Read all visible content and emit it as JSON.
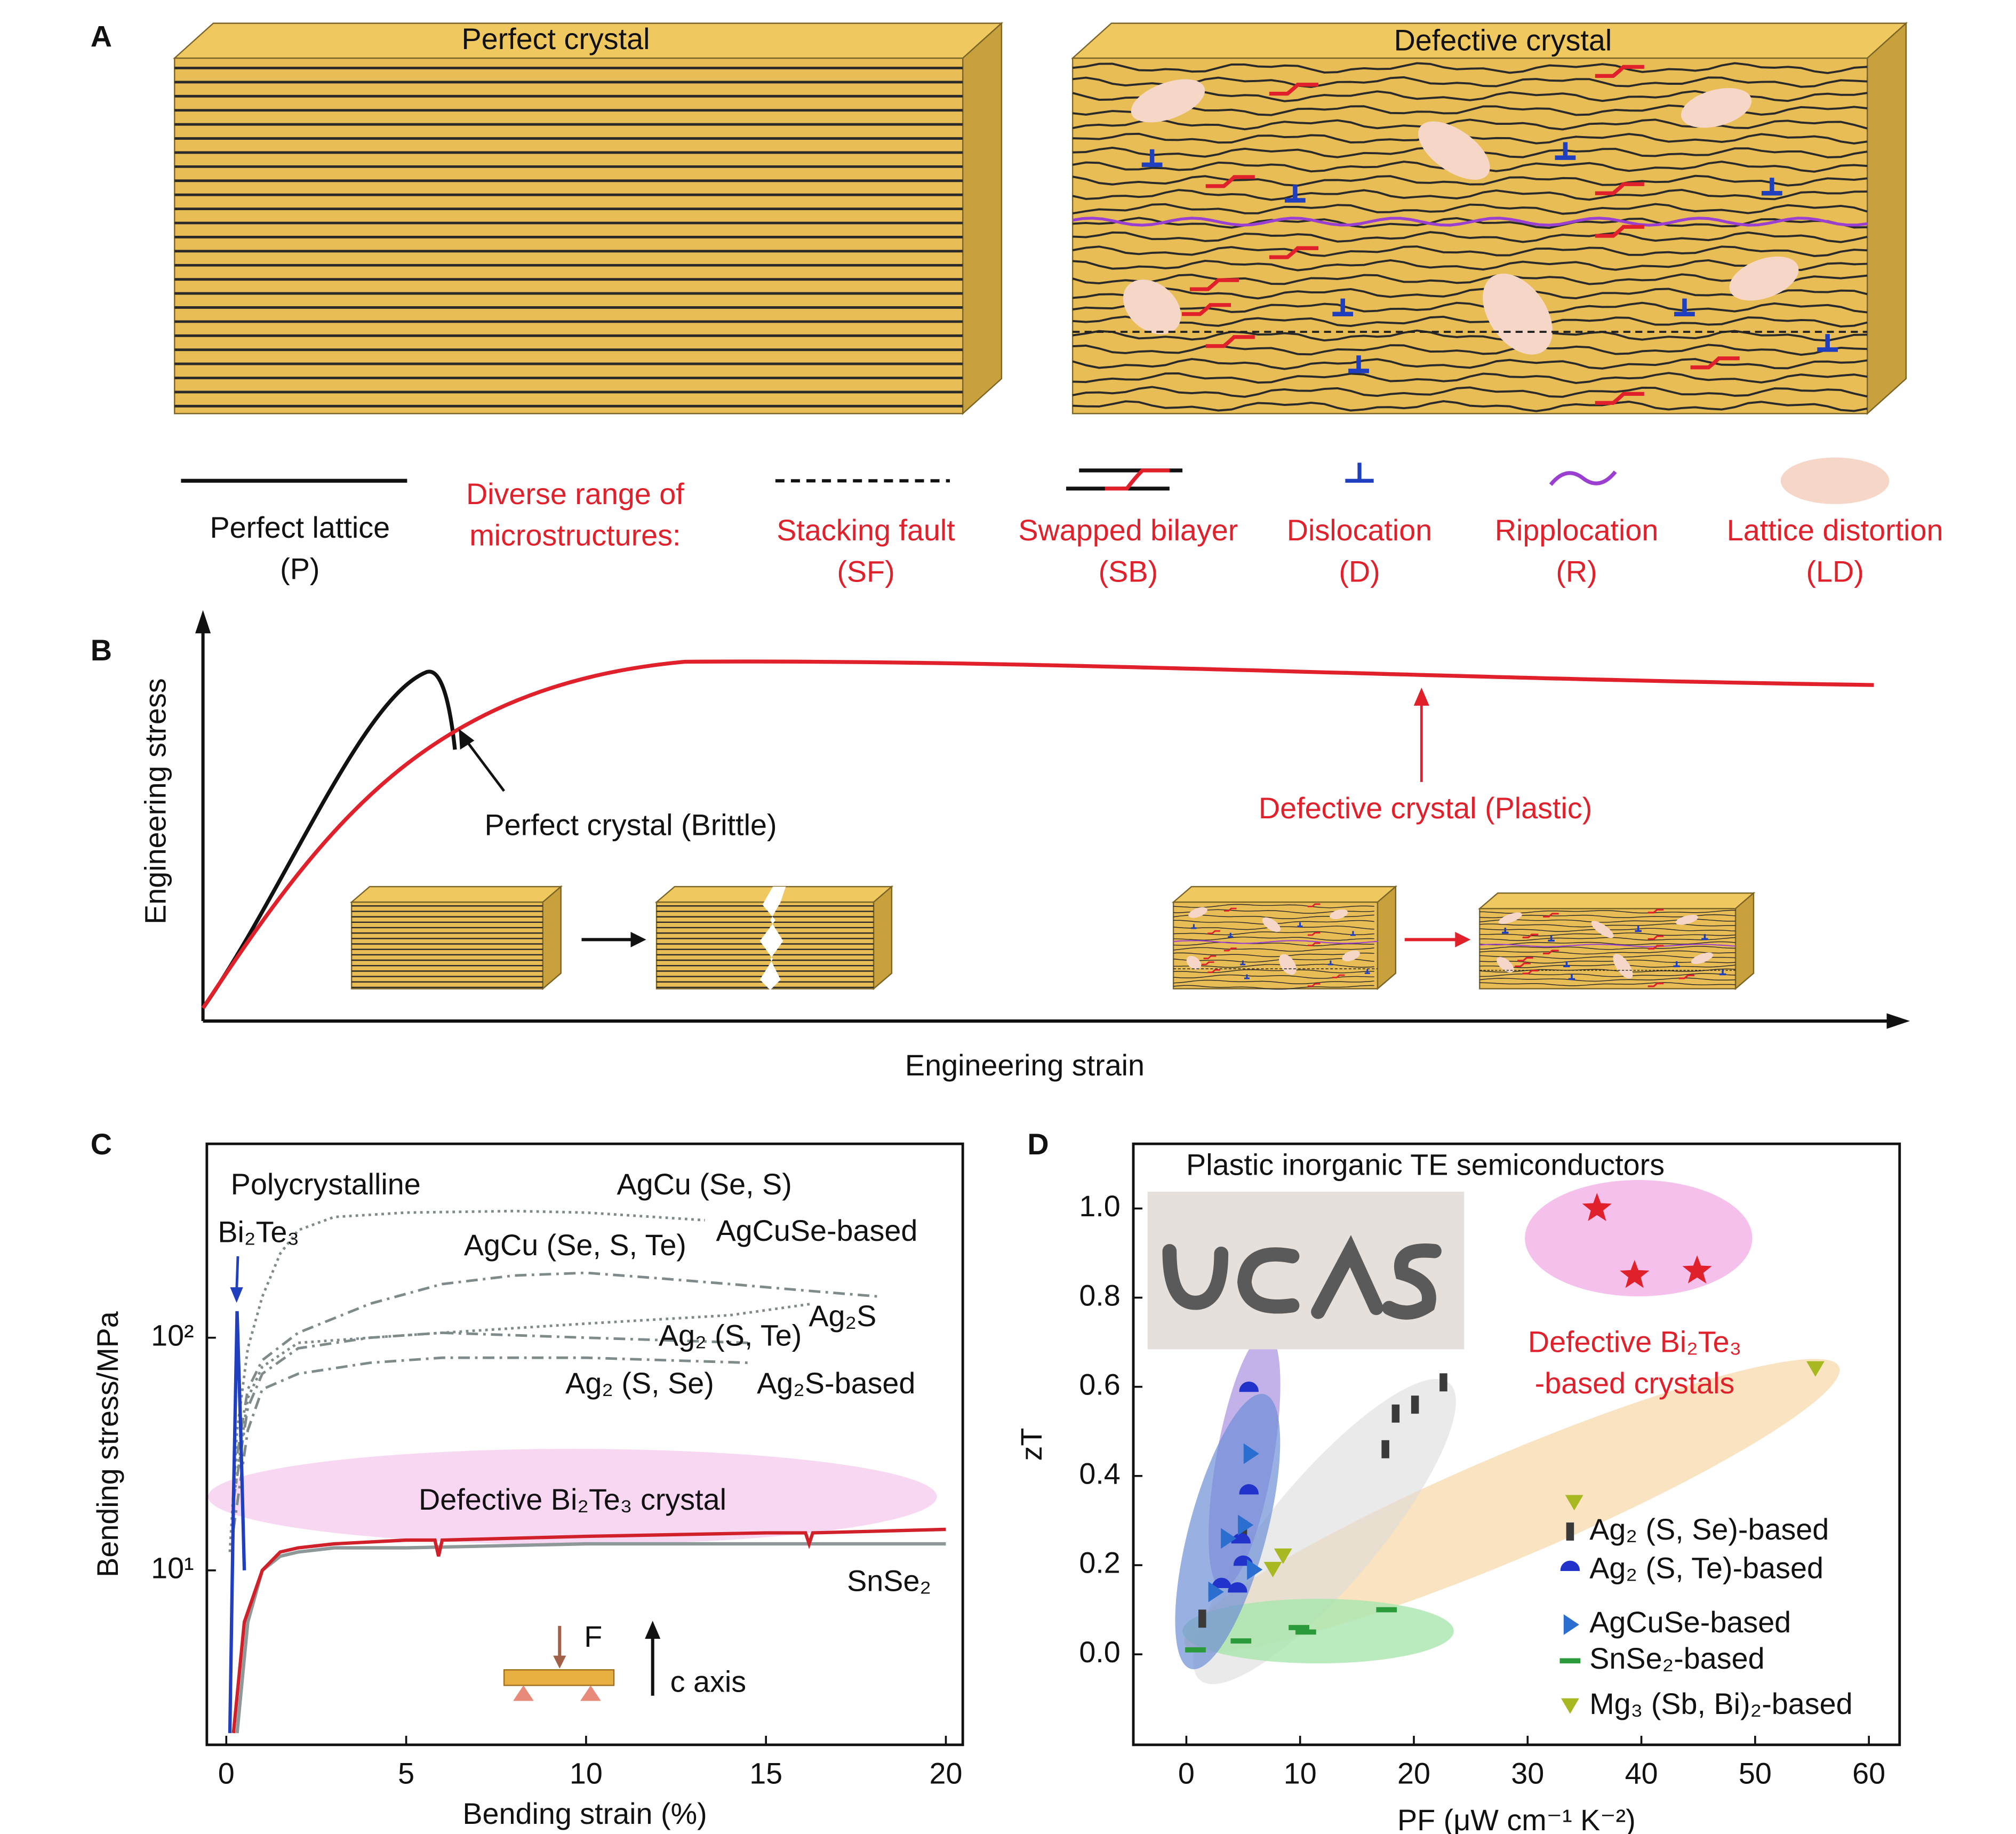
{
  "panel_a": {
    "label": "A",
    "perfect_title": "Perfect crystal",
    "defective_title": "Defective crystal",
    "perfect_legend": [
      "Perfect lattice",
      "(P)"
    ],
    "intro": [
      "Diverse range of",
      "microstructures:"
    ],
    "items": [
      {
        "name": "Stacking fault",
        "abbr": "(SF)"
      },
      {
        "name": "Swapped bilayer",
        "abbr": "(SB)"
      },
      {
        "name": "Dislocation",
        "abbr": "(D)"
      },
      {
        "name": "Ripplocation",
        "abbr": "(R)"
      },
      {
        "name": "Lattice distortion",
        "abbr": "(LD)"
      }
    ]
  },
  "panel_b": {
    "label": "B",
    "ylabel": "Engineering stress",
    "xlabel": "Engineering strain",
    "annotations": [
      "Perfect crystal (Brittle)",
      "Defective crystal (Plastic)"
    ]
  },
  "chart_data": [
    {
      "type": "line",
      "panel_label": "C",
      "xlabel": "Bending strain (%)",
      "ylabel": "Bending stress/MPa",
      "log_y": true,
      "xlim": [
        -0.54,
        20.47
      ],
      "ylim": [
        1.78,
        681
      ],
      "xticks": [
        0,
        5,
        10,
        15,
        20
      ],
      "yticks": [
        {
          "value": 10,
          "label": "10¹"
        },
        {
          "value": 100,
          "label": "10²"
        }
      ],
      "series": [
        {
          "name": "AgCu (Se, S)",
          "color": "#7f8b8b",
          "dash": "dotted",
          "x": [
            0.1,
            0.3,
            0.6,
            1,
            1.5,
            2,
            3,
            5,
            8,
            10,
            13.3
          ],
          "values": [
            12,
            40,
            90,
            150,
            230,
            290,
            330,
            345,
            350,
            345,
            320
          ]
        },
        {
          "name": "AgCu (Se, S, Te)",
          "color": "#7f8b8b",
          "dash": "dashdot",
          "x": [
            0.2,
            0.6,
            1,
            2,
            4,
            6,
            8,
            10,
            12,
            14,
            16,
            18.2
          ],
          "values": [
            25,
            60,
            80,
            105,
            140,
            170,
            185,
            190,
            180,
            170,
            160,
            150
          ]
        },
        {
          "name": "Ag₂S",
          "color": "#7f8b8b",
          "dash": "dotted",
          "x": [
            0.2,
            0.6,
            1,
            2,
            4,
            6,
            10,
            14,
            16.3
          ],
          "values": [
            20,
            55,
            75,
            95,
            100,
            105,
            115,
            125,
            140
          ]
        },
        {
          "name": "Ag₂ (S, Te)",
          "color": "#7f8b8b",
          "dash": "dashdot",
          "x": [
            0.2,
            0.6,
            1,
            2,
            4,
            6,
            10,
            14.5
          ],
          "values": [
            20,
            50,
            70,
            90,
            100,
            105,
            100,
            95
          ]
        },
        {
          "name": "Ag₂ (S, Se)",
          "color": "#7f8b8b",
          "dash": "dashdot",
          "x": [
            0.2,
            0.6,
            1,
            2,
            4,
            6,
            10,
            14.5
          ],
          "values": [
            15,
            40,
            60,
            70,
            78,
            82,
            82,
            78
          ]
        },
        {
          "name": "SnSe₂",
          "color": "#8e9898",
          "dash": "solid",
          "x": [
            0.3,
            0.6,
            1,
            1.5,
            2,
            3,
            5,
            10,
            15,
            20
          ],
          "values": [
            2,
            6,
            10,
            11.5,
            12,
            12.5,
            12.5,
            13,
            13,
            13
          ]
        },
        {
          "name": "Defective Bi₂Te₃ crystal",
          "color": "#d0202a",
          "dash": "solid",
          "x": [
            0.2,
            0.5,
            1,
            1.5,
            2,
            3,
            5,
            5.8,
            5.9,
            6,
            10,
            15,
            16.1,
            16.2,
            16.3,
            20
          ],
          "values": [
            2,
            6,
            10,
            12,
            12.5,
            13,
            13.5,
            13.5,
            11.5,
            13.5,
            14,
            14.5,
            14.5,
            13,
            14.5,
            15
          ]
        },
        {
          "color": "#1f3fbf",
          "dash": "solid",
          "x": [
            0.1,
            0.2,
            0.3,
            0.4,
            0.5
          ],
          "values": [
            2,
            20,
            130,
            40,
            10
          ]
        }
      ],
      "annotations": [
        "Polycrystalline",
        "Bi₂Te₃",
        "AgCuSe-based",
        "Ag₂S-based",
        "F",
        "c axis"
      ]
    },
    {
      "type": "scatter",
      "panel_label": "D",
      "title": "Plastic inorganic TE semiconductors",
      "xlabel": "PF (μW cm⁻¹ K⁻²)",
      "ylabel": "zT",
      "xlim": [
        -4.66,
        62.7
      ],
      "ylim": [
        -0.203,
        1.145
      ],
      "xticks": [
        0,
        10,
        20,
        30,
        40,
        50,
        60
      ],
      "yticks": [
        {
          "value": 0,
          "label": "0.0"
        },
        0.2,
        0.4,
        0.6,
        0.8,
        {
          "value": 1,
          "label": "1.0"
        }
      ],
      "series": [
        {
          "name": "Ag₂ (S, Se)-based",
          "color": "#3a3a3a",
          "marker": "bar",
          "x": [
            1.4,
            5,
            17.5,
            18.4,
            20.1,
            22.6
          ],
          "values": [
            0.08,
            0.28,
            0.46,
            0.54,
            0.56,
            0.61
          ]
        },
        {
          "name": "Ag₂ (S, Te)-based",
          "color": "#2233cc",
          "marker": "half-circle",
          "x": [
            5.5,
            5.5,
            4.8,
            5,
            4.5,
            3.1
          ],
          "values": [
            0.59,
            0.36,
            0.25,
            0.2,
            0.14,
            0.15
          ]
        },
        {
          "name": "AgCuSe-based",
          "color": "#2a6fd0",
          "marker": "triangle-right",
          "x": [
            5.6,
            5.1,
            3.6,
            5.9,
            2.5
          ],
          "values": [
            0.45,
            0.29,
            0.26,
            0.19,
            0.14
          ]
        },
        {
          "name": "SnSe₂-based",
          "color": "#2a9a3a",
          "marker": "dash",
          "x": [
            0.8,
            4.8,
            9.9,
            10.5,
            17.6
          ],
          "values": [
            0.01,
            0.03,
            0.06,
            0.05,
            0.1
          ]
        },
        {
          "name": "Mg₃ (Sb, Bi)₂-based",
          "color": "#a8b820",
          "marker": "triangle-down",
          "x": [
            55.3,
            34.1,
            8.5,
            7.6
          ],
          "values": [
            0.64,
            0.34,
            0.22,
            0.19
          ]
        },
        {
          "color": "#e0202a",
          "marker": "star",
          "x": [
            36.1,
            39.4,
            44.9
          ],
          "values": [
            1.0,
            0.85,
            0.86
          ]
        }
      ],
      "annotations": [
        "Defective Bi₂Te₃",
        "-based crystals"
      ]
    }
  ]
}
